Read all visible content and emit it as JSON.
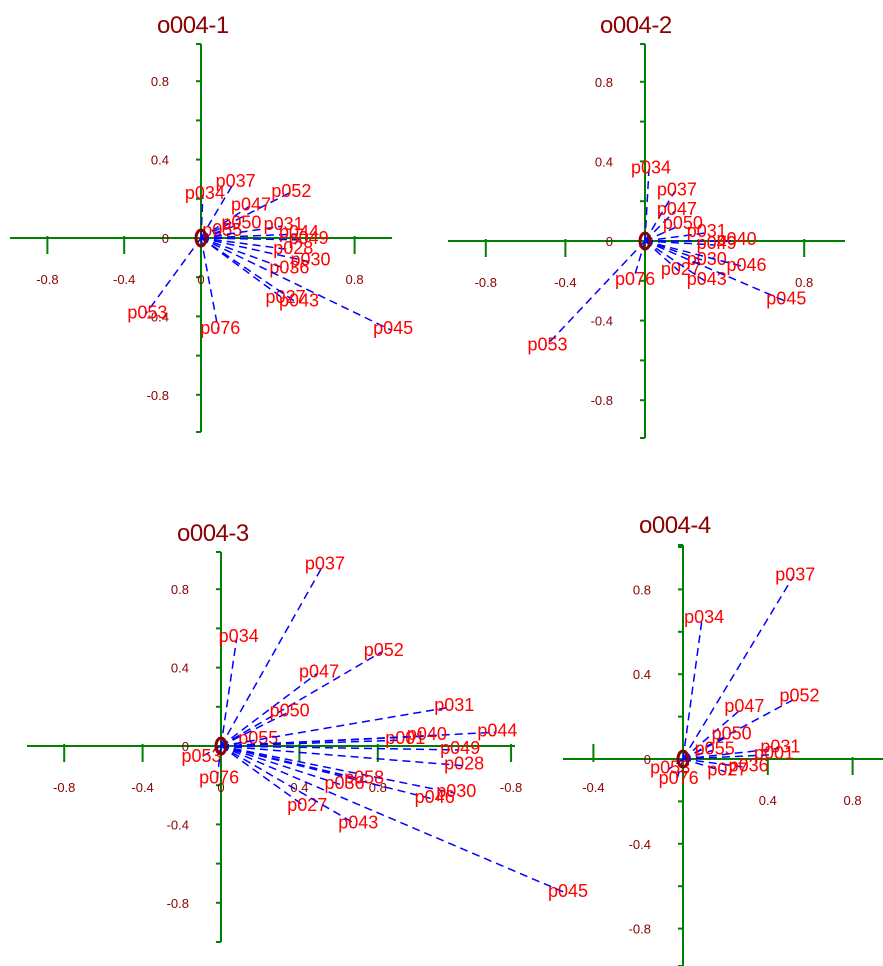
{
  "chart_data": [
    {
      "type": "scatter",
      "title": "o004-1",
      "xlim": [
        -1.0,
        1.0
      ],
      "ylim": [
        -1.0,
        1.0
      ],
      "xticks": [
        "-0.8",
        "-0.4",
        "0",
        "0.8"
      ],
      "yticks": [
        "0.8",
        "0.4",
        "0",
        "-0.4",
        "-0.8"
      ],
      "vectors": [
        {
          "label": "p034",
          "x": 0.01,
          "y": 0.22
        },
        {
          "label": "p037",
          "x": 0.17,
          "y": 0.28
        },
        {
          "label": "p052",
          "x": 0.46,
          "y": 0.23
        },
        {
          "label": "p047",
          "x": 0.25,
          "y": 0.16
        },
        {
          "label": "p050",
          "x": 0.2,
          "y": 0.07
        },
        {
          "label": "p055",
          "x": 0.1,
          "y": 0.03
        },
        {
          "label": "p031",
          "x": 0.42,
          "y": 0.06
        },
        {
          "label": "p044",
          "x": 0.5,
          "y": 0.02
        },
        {
          "label": "p049",
          "x": 0.55,
          "y": -0.01
        },
        {
          "label": "p028",
          "x": 0.47,
          "y": -0.06
        },
        {
          "label": "p030",
          "x": 0.56,
          "y": -0.12
        },
        {
          "label": "p036",
          "x": 0.45,
          "y": -0.16
        },
        {
          "label": "p027",
          "x": 0.43,
          "y": -0.31
        },
        {
          "label": "p043",
          "x": 0.5,
          "y": -0.33
        },
        {
          "label": "p045",
          "x": 0.99,
          "y": -0.47
        },
        {
          "label": "p053",
          "x": -0.29,
          "y": -0.39
        },
        {
          "label": "p076",
          "x": 0.09,
          "y": -0.47
        }
      ]
    },
    {
      "type": "scatter",
      "title": "o004-2",
      "xlim": [
        -1.0,
        1.0
      ],
      "ylim": [
        -1.0,
        1.0
      ],
      "xticks": [
        "-0.8",
        "-0.4",
        "0.8"
      ],
      "yticks": [
        "0.8",
        "0.4",
        "0",
        "-0.4",
        "-0.8"
      ],
      "vectors": [
        {
          "label": "p034",
          "x": 0.02,
          "y": 0.36
        },
        {
          "label": "p037",
          "x": 0.15,
          "y": 0.25
        },
        {
          "label": "p047",
          "x": 0.15,
          "y": 0.15
        },
        {
          "label": "p050",
          "x": 0.18,
          "y": 0.08
        },
        {
          "label": "p031",
          "x": 0.3,
          "y": 0.04
        },
        {
          "label": "p040",
          "x": 0.45,
          "y": 0.0
        },
        {
          "label": "p049",
          "x": 0.35,
          "y": -0.02
        },
        {
          "label": "p030",
          "x": 0.3,
          "y": -0.1
        },
        {
          "label": "p046",
          "x": 0.5,
          "y": -0.13
        },
        {
          "label": "p027",
          "x": 0.17,
          "y": -0.15
        },
        {
          "label": "p043",
          "x": 0.3,
          "y": -0.2
        },
        {
          "label": "p045",
          "x": 0.7,
          "y": -0.3
        },
        {
          "label": "p053",
          "x": -0.5,
          "y": -0.53
        },
        {
          "label": "p076",
          "x": -0.06,
          "y": -0.2
        }
      ]
    },
    {
      "type": "scatter",
      "title": "o004-3",
      "xlim": [
        -1.0,
        1.0
      ],
      "ylim": [
        -1.0,
        1.0
      ],
      "xticks": [
        "-0.8",
        "-0.4",
        "0",
        "0.4",
        "0.8",
        "-0.8",
        "-0.4"
      ],
      "yticks": [
        "0.8",
        "0.4",
        "0",
        "-0.4",
        "-0.8"
      ],
      "vectors": [
        {
          "label": "p037",
          "x": 0.52,
          "y": 0.92
        },
        {
          "label": "p034",
          "x": 0.08,
          "y": 0.55
        },
        {
          "label": "p052",
          "x": 0.82,
          "y": 0.48
        },
        {
          "label": "p047",
          "x": 0.49,
          "y": 0.37
        },
        {
          "label": "p050",
          "x": 0.34,
          "y": 0.17
        },
        {
          "label": "p055",
          "x": 0.18,
          "y": 0.03
        },
        {
          "label": "p031",
          "x": 1.18,
          "y": 0.2
        },
        {
          "label": "p044",
          "x": 1.4,
          "y": 0.07
        },
        {
          "label": "p001",
          "x": 0.93,
          "y": 0.03
        },
        {
          "label": "p040",
          "x": 1.04,
          "y": 0.05
        },
        {
          "label": "p049",
          "x": 1.21,
          "y": -0.02
        },
        {
          "label": "p028",
          "x": 1.23,
          "y": -0.1
        },
        {
          "label": "p030",
          "x": 1.19,
          "y": -0.24
        },
        {
          "label": "p046",
          "x": 1.08,
          "y": -0.27
        },
        {
          "label": "p058",
          "x": 0.72,
          "y": -0.17
        },
        {
          "label": "p036",
          "x": 0.62,
          "y": -0.2
        },
        {
          "label": "p027",
          "x": 0.43,
          "y": -0.31
        },
        {
          "label": "p043",
          "x": 0.69,
          "y": -0.4
        },
        {
          "label": "p045",
          "x": 1.76,
          "y": -0.75
        },
        {
          "label": "p053",
          "x": -0.11,
          "y": -0.06
        },
        {
          "label": "p076",
          "x": -0.02,
          "y": -0.17
        }
      ]
    },
    {
      "type": "scatter",
      "title": "o004-4",
      "xlim": [
        -1.0,
        1.0
      ],
      "ylim": [
        -1.0,
        1.0
      ],
      "xticks": [
        "0.4",
        "0.8"
      ],
      "yticks": [
        "0.8",
        "0.4",
        "0",
        "-0.4",
        "-0.8"
      ],
      "vectors": [
        {
          "label": "p034",
          "x": 0.09,
          "y": 0.66
        },
        {
          "label": "p037",
          "x": 0.52,
          "y": 0.86
        },
        {
          "label": "p052",
          "x": 0.54,
          "y": 0.29
        },
        {
          "label": "p047",
          "x": 0.28,
          "y": 0.24
        },
        {
          "label": "p050",
          "x": 0.22,
          "y": 0.11
        },
        {
          "label": "p055",
          "x": 0.14,
          "y": 0.04
        },
        {
          "label": "p031",
          "x": 0.45,
          "y": 0.05
        },
        {
          "label": "p001",
          "x": 0.42,
          "y": 0.02
        },
        {
          "label": "p036",
          "x": 0.3,
          "y": -0.04
        },
        {
          "label": "p027",
          "x": 0.2,
          "y": -0.06
        },
        {
          "label": "p076",
          "x": -0.03,
          "y": -0.1
        },
        {
          "label": "p053",
          "x": -0.07,
          "y": -0.05
        }
      ]
    }
  ]
}
